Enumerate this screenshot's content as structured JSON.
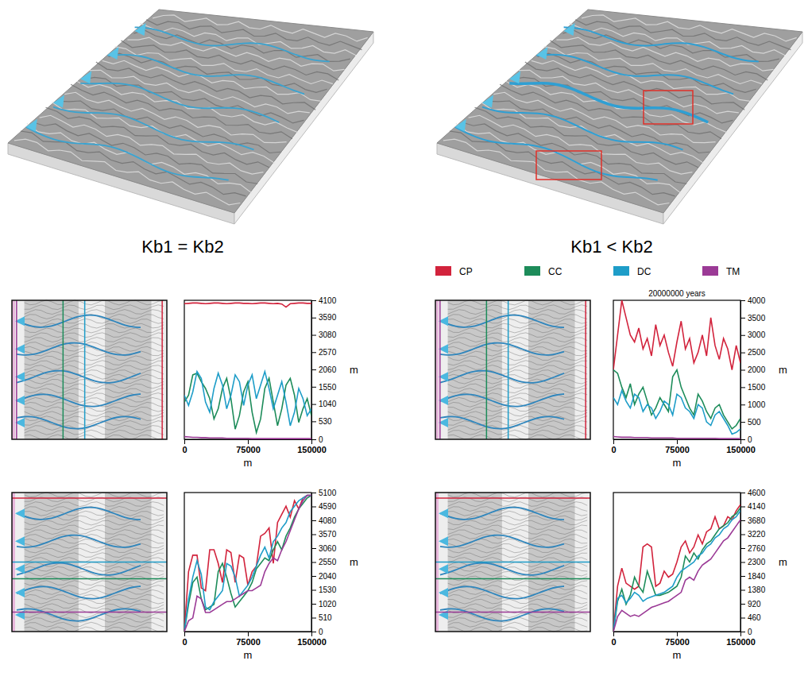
{
  "labels": [
    "Kb1 = Kb2",
    "Kb1 < Kb2"
  ],
  "chart_data": [
    {
      "type": "line",
      "x_label": "m",
      "y_label": "m",
      "x": [
        0,
        5000,
        10000,
        15000,
        20000,
        25000,
        30000,
        35000,
        40000,
        45000,
        50000,
        55000,
        60000,
        65000,
        70000,
        75000,
        80000,
        85000,
        90000,
        95000,
        100000,
        105000,
        110000,
        115000,
        120000,
        125000,
        130000,
        135000,
        140000,
        145000,
        150000
      ],
      "xlim": [
        0,
        150000
      ],
      "xticks": [
        0,
        75000,
        150000
      ],
      "ylim": [
        0,
        4100
      ],
      "yticks": [
        0,
        530,
        1040,
        1550,
        2060,
        2570,
        3080,
        3590,
        4100
      ],
      "series": [
        {
          "name": "CP",
          "color": "#d2233c",
          "values": [
            4000,
            4010,
            4020,
            4020,
            4010,
            4000,
            4010,
            4020,
            4020,
            4010,
            4000,
            4010,
            4020,
            4020,
            4010,
            4010,
            4000,
            4010,
            4020,
            4020,
            4010,
            4000,
            4010,
            3990,
            3900,
            4000,
            4010,
            4020,
            4020,
            4010,
            4010
          ]
        },
        {
          "name": "CC",
          "color": "#1d8c5a",
          "values": [
            1100,
            1300,
            1900,
            1950,
            1700,
            1500,
            1200,
            600,
            900,
            1500,
            1800,
            1200,
            300,
            700,
            1400,
            1700,
            800,
            200,
            600,
            1500,
            1800,
            1100,
            400,
            900,
            1600,
            1800,
            1300,
            500,
            900,
            1200,
            700
          ]
        },
        {
          "name": "DC",
          "color": "#1e9dc8",
          "values": [
            1300,
            1000,
            1400,
            2000,
            1800,
            1100,
            800,
            1500,
            1950,
            1600,
            900,
            1300,
            1900,
            1700,
            1000,
            1600,
            1900,
            1200,
            1600,
            2000,
            1500,
            900,
            1300,
            1700,
            1100,
            400,
            800,
            1500,
            1200,
            700,
            900
          ]
        },
        {
          "name": "TM",
          "color": "#9b3a96",
          "values": [
            80,
            70,
            60,
            60,
            50,
            50,
            40,
            40,
            40,
            40,
            30,
            30,
            30,
            30,
            30,
            30,
            20,
            20,
            20,
            20,
            20,
            20,
            20,
            20,
            20,
            20,
            20,
            20,
            20,
            20,
            20
          ]
        }
      ]
    },
    {
      "type": "line",
      "title": "20000000 years",
      "x_label": "m",
      "y_label": "m",
      "legend": "top",
      "x": [
        0,
        5000,
        10000,
        15000,
        20000,
        25000,
        30000,
        35000,
        40000,
        45000,
        50000,
        55000,
        60000,
        65000,
        70000,
        75000,
        80000,
        85000,
        90000,
        95000,
        100000,
        105000,
        110000,
        115000,
        120000,
        125000,
        130000,
        135000,
        140000,
        145000,
        150000
      ],
      "xlim": [
        0,
        150000
      ],
      "xticks": [
        0,
        75000,
        150000
      ],
      "ylim": [
        0,
        4000
      ],
      "yticks": [
        0,
        500,
        1000,
        1500,
        2000,
        2500,
        3000,
        3500,
        4000
      ],
      "series": [
        {
          "name": "CP",
          "color": "#d2233c",
          "values": [
            2000,
            3000,
            4000,
            3500,
            3000,
            2800,
            3200,
            2600,
            2900,
            2400,
            3300,
            2700,
            3000,
            2500,
            2100,
            2800,
            3400,
            2600,
            2900,
            2200,
            2500,
            3000,
            2400,
            3500,
            2700,
            2300,
            2900,
            2600,
            2000,
            2700,
            2200
          ]
        },
        {
          "name": "CC",
          "color": "#1d8c5a",
          "values": [
            2000,
            1900,
            1500,
            1200,
            1600,
            1000,
            1300,
            1500,
            1100,
            700,
            900,
            1200,
            1000,
            800,
            1800,
            2000,
            1500,
            1200,
            900,
            700,
            1300,
            1100,
            800,
            600,
            900,
            1000,
            700,
            500,
            300,
            400,
            600
          ]
        },
        {
          "name": "DC",
          "color": "#1e9dc8",
          "values": [
            1200,
            1000,
            1400,
            1100,
            900,
            1300,
            1200,
            800,
            1000,
            900,
            600,
            800,
            1100,
            1000,
            700,
            1300,
            1200,
            900,
            800,
            600,
            1000,
            900,
            500,
            400,
            700,
            800,
            600,
            400,
            150,
            200,
            300
          ]
        },
        {
          "name": "TM",
          "color": "#9b3a96",
          "values": [
            80,
            70,
            60,
            60,
            60,
            50,
            50,
            50,
            50,
            40,
            40,
            40,
            40,
            40,
            40,
            30,
            30,
            30,
            30,
            30,
            30,
            30,
            30,
            30,
            30,
            20,
            20,
            20,
            20,
            20,
            20
          ]
        }
      ]
    },
    {
      "type": "line",
      "x_label": "m",
      "y_label": "m",
      "x": [
        0,
        5000,
        10000,
        15000,
        20000,
        25000,
        30000,
        35000,
        40000,
        45000,
        50000,
        55000,
        60000,
        65000,
        70000,
        75000,
        80000,
        85000,
        90000,
        95000,
        100000,
        105000,
        110000,
        115000,
        120000,
        125000,
        130000,
        135000,
        140000,
        145000,
        150000
      ],
      "xlim": [
        0,
        150000
      ],
      "xticks": [
        0,
        75000,
        150000
      ],
      "ylim": [
        0,
        5100
      ],
      "yticks": [
        0,
        510,
        1020,
        1530,
        2040,
        2550,
        3060,
        3570,
        4080,
        4590,
        5100
      ],
      "series": [
        {
          "name": "CP",
          "color": "#d2233c",
          "values": [
            0,
            2200,
            2800,
            2800,
            1600,
            1500,
            3000,
            3000,
            2500,
            1800,
            3000,
            2900,
            1800,
            2800,
            2700,
            1700,
            2200,
            2400,
            3500,
            3600,
            3800,
            2500,
            4000,
            4300,
            4600,
            4200,
            4800,
            4500,
            4900,
            5000,
            5000
          ]
        },
        {
          "name": "CC",
          "color": "#1d8c5a",
          "values": [
            0,
            1000,
            1800,
            2000,
            1200,
            800,
            900,
            1000,
            2200,
            2500,
            2000,
            1400,
            900,
            1100,
            1300,
            1500,
            1800,
            2300,
            2500,
            2700,
            2600,
            3000,
            3300,
            3000,
            3500,
            3800,
            4200,
            4500,
            4700,
            4900,
            5000
          ]
        },
        {
          "name": "DC",
          "color": "#1e9dc8",
          "values": [
            0,
            1200,
            2000,
            2600,
            2100,
            900,
            800,
            1100,
            1300,
            1500,
            2500,
            2400,
            2000,
            1300,
            1500,
            1700,
            2000,
            2400,
            2800,
            3100,
            2700,
            3300,
            3500,
            3800,
            4000,
            4400,
            4600,
            4800,
            4900,
            5000,
            5000
          ]
        },
        {
          "name": "TM",
          "color": "#9b3a96",
          "values": [
            0,
            400,
            500,
            1300,
            1200,
            700,
            700,
            800,
            900,
            1000,
            1100,
            1100,
            1200,
            1300,
            1400,
            1500,
            1500,
            1600,
            1700,
            2200,
            2500,
            2700,
            2600,
            3000,
            3300,
            3700,
            4100,
            4500,
            4800,
            5000,
            5000
          ]
        }
      ]
    },
    {
      "type": "line",
      "x_label": "m",
      "y_label": "m",
      "x": [
        0,
        5000,
        10000,
        15000,
        20000,
        25000,
        30000,
        35000,
        40000,
        45000,
        50000,
        55000,
        60000,
        65000,
        70000,
        75000,
        80000,
        85000,
        90000,
        95000,
        100000,
        105000,
        110000,
        115000,
        120000,
        125000,
        130000,
        135000,
        140000,
        145000,
        150000
      ],
      "xlim": [
        0,
        150000
      ],
      "xticks": [
        0,
        75000,
        150000
      ],
      "ylim": [
        0,
        4600
      ],
      "yticks": [
        0,
        460,
        920,
        1380,
        1840,
        2300,
        2760,
        3220,
        3680,
        4140,
        4600
      ],
      "series": [
        {
          "name": "CP",
          "color": "#d2233c",
          "values": [
            0,
            1500,
            2100,
            1600,
            1500,
            1400,
            1500,
            2800,
            2900,
            2800,
            1500,
            1600,
            2000,
            1800,
            1900,
            2300,
            2800,
            3000,
            2600,
            2800,
            3200,
            2900,
            3300,
            3400,
            3800,
            3400,
            3500,
            3800,
            3700,
            4000,
            4200
          ]
        },
        {
          "name": "CC",
          "color": "#1d8c5a",
          "values": [
            0,
            1000,
            1400,
            900,
            1200,
            1800,
            1500,
            1300,
            2000,
            1600,
            1200,
            1200,
            1250,
            1300,
            1400,
            1500,
            1800,
            2500,
            2300,
            2600,
            2400,
            2700,
            2900,
            3000,
            3200,
            3400,
            3500,
            3600,
            3800,
            3900,
            4100
          ]
        },
        {
          "name": "DC",
          "color": "#1e9dc8",
          "values": [
            0,
            1100,
            1200,
            950,
            1100,
            1300,
            1200,
            1000,
            1100,
            1150,
            1200,
            1250,
            1300,
            1400,
            1500,
            1800,
            2000,
            2100,
            2200,
            2300,
            2500,
            2600,
            2800,
            2900,
            3100,
            3200,
            3400,
            3500,
            3700,
            3800,
            4000
          ]
        },
        {
          "name": "TM",
          "color": "#9b3a96",
          "values": [
            0,
            500,
            700,
            600,
            500,
            550,
            500,
            600,
            700,
            800,
            850,
            900,
            950,
            1000,
            1100,
            1200,
            1300,
            1700,
            1800,
            1700,
            2000,
            2200,
            2300,
            2400,
            2600,
            2800,
            3000,
            3100,
            3300,
            3500,
            3700
          ]
        }
      ]
    }
  ]
}
